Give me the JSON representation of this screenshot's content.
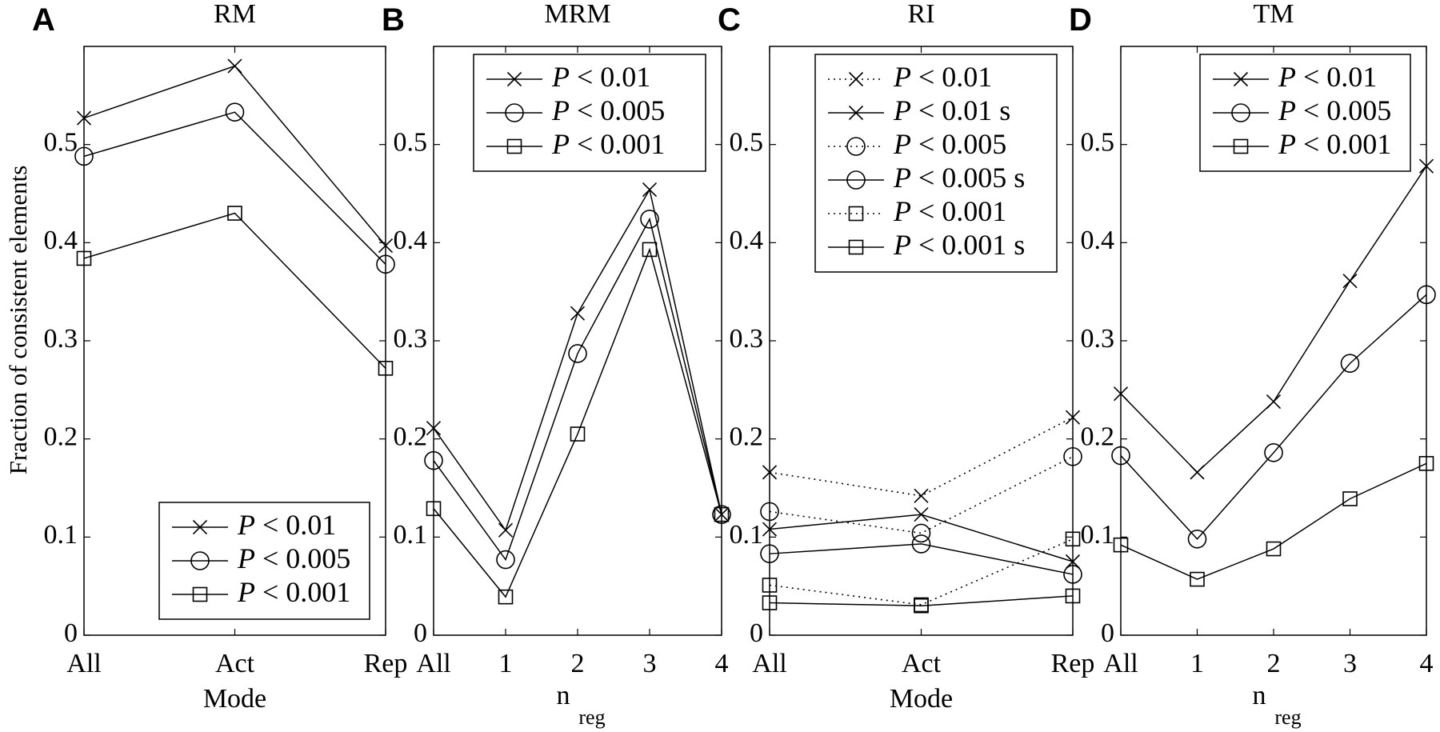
{
  "ylabel": "Fraction of consistent elements",
  "chart_data": [
    {
      "panel": "A",
      "title": "RM",
      "type": "line",
      "xlabel": "Mode",
      "xlabel_sub": "",
      "categories": [
        "All",
        "Act",
        "Rep"
      ],
      "ylim": [
        0,
        0.6
      ],
      "yticks": [
        "0",
        "0.1",
        "0.2",
        "0.3",
        "0.4",
        "0.5"
      ],
      "legend_position": "bottom-right",
      "series": [
        {
          "name": "P < 0.01",
          "marker": "x",
          "style": "solid",
          "values": [
            0.527,
            0.58,
            0.397
          ]
        },
        {
          "name": "P < 0.005",
          "marker": "o",
          "style": "solid",
          "values": [
            0.488,
            0.533,
            0.378
          ]
        },
        {
          "name": "P < 0.001",
          "marker": "s",
          "style": "solid",
          "values": [
            0.384,
            0.43,
            0.272
          ]
        }
      ]
    },
    {
      "panel": "B",
      "title": "MRM",
      "type": "line",
      "xlabel": "n",
      "xlabel_sub": "reg",
      "categories": [
        "All",
        "1",
        "2",
        "3",
        "4"
      ],
      "ylim": [
        0,
        0.6
      ],
      "yticks": [
        "0",
        "0.1",
        "0.2",
        "0.3",
        "0.4",
        "0.5"
      ],
      "legend_position": "top-right",
      "series": [
        {
          "name": "P < 0.01",
          "marker": "x",
          "style": "solid",
          "values": [
            0.211,
            0.107,
            0.328,
            0.454,
            0.123
          ]
        },
        {
          "name": "P < 0.005",
          "marker": "o",
          "style": "solid",
          "values": [
            0.178,
            0.077,
            0.287,
            0.424,
            0.123
          ]
        },
        {
          "name": "P < 0.001",
          "marker": "s",
          "style": "solid",
          "values": [
            0.129,
            0.039,
            0.205,
            0.393,
            0.123
          ]
        }
      ]
    },
    {
      "panel": "C",
      "title": "RI",
      "type": "line",
      "xlabel": "Mode",
      "xlabel_sub": "",
      "categories": [
        "All",
        "Act",
        "Rep"
      ],
      "ylim": [
        0,
        0.6
      ],
      "yticks": [
        "0",
        "0.1",
        "0.2",
        "0.3",
        "0.4",
        "0.5"
      ],
      "legend_position": "top-right",
      "series": [
        {
          "name": "P < 0.01",
          "marker": "x",
          "style": "dotted",
          "values": [
            0.166,
            0.142,
            0.222
          ]
        },
        {
          "name": "P < 0.01 s",
          "marker": "x",
          "style": "solid",
          "values": [
            0.108,
            0.123,
            0.075
          ]
        },
        {
          "name": "P < 0.005",
          "marker": "o",
          "style": "dotted",
          "values": [
            0.126,
            0.104,
            0.182
          ]
        },
        {
          "name": "P < 0.005 s",
          "marker": "o",
          "style": "solid",
          "values": [
            0.083,
            0.093,
            0.062
          ]
        },
        {
          "name": "P < 0.001",
          "marker": "s",
          "style": "dotted",
          "values": [
            0.051,
            0.031,
            0.098
          ]
        },
        {
          "name": "P < 0.001 s",
          "marker": "s",
          "style": "solid",
          "values": [
            0.033,
            0.03,
            0.04
          ]
        }
      ]
    },
    {
      "panel": "D",
      "title": "TM",
      "type": "line",
      "xlabel": "n",
      "xlabel_sub": "reg",
      "categories": [
        "All",
        "1",
        "2",
        "3",
        "4"
      ],
      "ylim": [
        0,
        0.6
      ],
      "yticks": [
        "0",
        "0.1",
        "0.2",
        "0.3",
        "0.4",
        "0.5"
      ],
      "legend_position": "top-right",
      "series": [
        {
          "name": "P < 0.01",
          "marker": "x",
          "style": "solid",
          "values": [
            0.246,
            0.166,
            0.238,
            0.361,
            0.478
          ]
        },
        {
          "name": "P < 0.005",
          "marker": "o",
          "style": "solid",
          "values": [
            0.183,
            0.098,
            0.186,
            0.277,
            0.347
          ]
        },
        {
          "name": "P < 0.001",
          "marker": "s",
          "style": "solid",
          "values": [
            0.092,
            0.057,
            0.088,
            0.139,
            0.175
          ]
        }
      ]
    }
  ]
}
